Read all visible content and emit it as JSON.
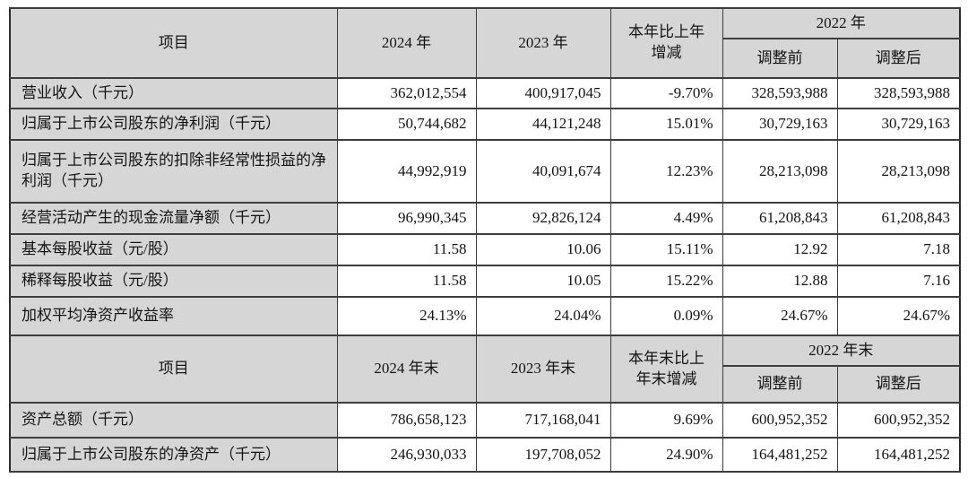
{
  "colors": {
    "header_bg": "#d6d6d6",
    "label_bg": "#d6d6d6",
    "cell_bg": "#ffffff",
    "border": "#3d3d3d",
    "text": "#141414"
  },
  "sections": [
    {
      "header": {
        "item": "项目",
        "y1": "2024 年",
        "y2": "2023 年",
        "change": "本年比上年\n增减",
        "group": "2022 年",
        "pre": "调整前",
        "post": "调整后"
      },
      "rows": [
        {
          "label": "营业收入（千元）",
          "y1": "362,012,554",
          "y2": "400,917,045",
          "change": "-9.70%",
          "pre": "328,593,988",
          "post": "328,593,988"
        },
        {
          "label": "归属于上市公司股东的净利润（千元）",
          "y1": "50,744,682",
          "y2": "44,121,248",
          "change": "15.01%",
          "pre": "30,729,163",
          "post": "30,729,163"
        },
        {
          "label": "归属于上市公司股东的扣除非经常性损益的净利润（千元）",
          "y1": "44,992,919",
          "y2": "40,091,674",
          "change": "12.23%",
          "pre": "28,213,098",
          "post": "28,213,098"
        },
        {
          "label": "经营活动产生的现金流量净额（千元）",
          "y1": "96,990,345",
          "y2": "92,826,124",
          "change": "4.49%",
          "pre": "61,208,843",
          "post": "61,208,843"
        },
        {
          "label": "基本每股收益（元/股）",
          "y1": "11.58",
          "y2": "10.06",
          "change": "15.11%",
          "pre": "12.92",
          "post": "7.18"
        },
        {
          "label": "稀释每股收益（元/股）",
          "y1": "11.58",
          "y2": "10.05",
          "change": "15.22%",
          "pre": "12.88",
          "post": "7.16"
        },
        {
          "label": "加权平均净资产收益率",
          "y1": "24.13%",
          "y2": "24.04%",
          "change": "0.09%",
          "pre": "24.67%",
          "post": "24.67%"
        }
      ]
    },
    {
      "header": {
        "item": "项目",
        "y1": "2024 年末",
        "y2": "2023 年末",
        "change": "本年末比上\n年末增减",
        "group": "2022 年末",
        "pre": "调整前",
        "post": "调整后"
      },
      "rows": [
        {
          "label": "资产总额（千元）",
          "y1": "786,658,123",
          "y2": "717,168,041",
          "change": "9.69%",
          "pre": "600,952,352",
          "post": "600,952,352"
        },
        {
          "label": "归属于上市公司股东的净资产（千元）",
          "y1": "246,930,033",
          "y2": "197,708,052",
          "change": "24.90%",
          "pre": "164,481,252",
          "post": "164,481,252"
        }
      ]
    }
  ]
}
